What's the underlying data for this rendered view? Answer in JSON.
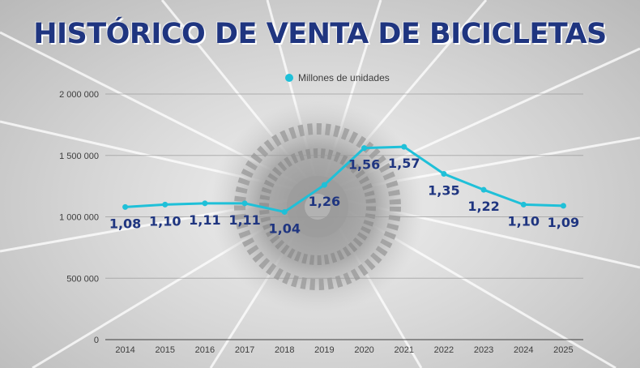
{
  "title": "HISTÓRICO DE VENTA DE BICICLETAS",
  "colors": {
    "title": "#1f3580",
    "series": "#1fc0d8",
    "label": "#1f3580",
    "grid": "#9a9a9a",
    "axis": "#3d3d3d"
  },
  "chart_data": {
    "type": "line",
    "title": "HISTÓRICO DE VENTA DE BICICLETAS",
    "categories": [
      "2014",
      "2015",
      "2016",
      "2017",
      "2018",
      "2019",
      "2020",
      "2021",
      "2022",
      "2023",
      "2024",
      "2025"
    ],
    "series": [
      {
        "name": "Millones de unidades",
        "values": [
          1080000,
          1100000,
          1110000,
          1110000,
          1040000,
          1260000,
          1560000,
          1570000,
          1350000,
          1220000,
          1100000,
          1090000
        ],
        "labels": [
          "1,08",
          "1,10",
          "1,11",
          "1,11",
          "1,04",
          "1,26",
          "1,56",
          "1,57",
          "1,35",
          "1,22",
          "1,10",
          "1,09"
        ],
        "label_positions": [
          "below",
          "below",
          "below",
          "below",
          "below",
          "below",
          "below",
          "below",
          "below",
          "below",
          "below",
          "below"
        ]
      }
    ],
    "y_ticks": [
      "0",
      "500 000",
      "1 000 000",
      "1 500 000",
      "2 000 000"
    ],
    "ylim": [
      0,
      2000000
    ],
    "grid": true,
    "legend": "top-center",
    "xlabel": "",
    "ylabel": ""
  }
}
